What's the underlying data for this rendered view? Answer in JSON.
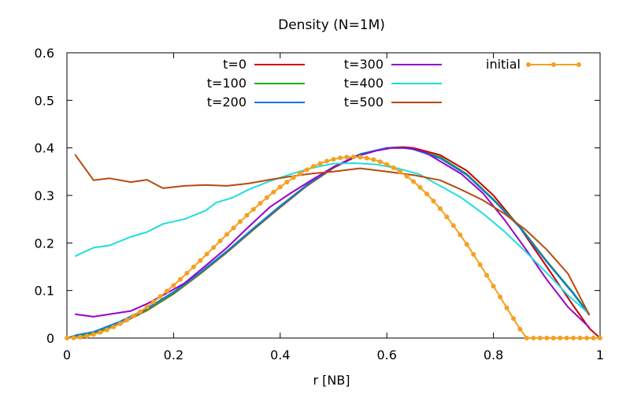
{
  "chart_data": {
    "type": "line",
    "title": "Density (N=1M)",
    "xlabel": "r [NB]",
    "ylabel": "",
    "xlim": [
      0,
      1
    ],
    "ylim": [
      0,
      0.6
    ],
    "xticks": [
      "0",
      "0.2",
      "0.4",
      "0.6",
      "0.8",
      "1"
    ],
    "yticks": [
      "0",
      "0.1",
      "0.2",
      "0.3",
      "0.4",
      "0.5",
      "0.6"
    ],
    "legend_position": "top",
    "series": [
      {
        "name": "t=0",
        "color": "#cc0000",
        "marker": false,
        "x": [
          0.0,
          0.02,
          0.05,
          0.1,
          0.15,
          0.2,
          0.25,
          0.3,
          0.35,
          0.4,
          0.45,
          0.5,
          0.55,
          0.6,
          0.63,
          0.65,
          0.7,
          0.75,
          0.8,
          0.85,
          0.9,
          0.95,
          0.98,
          1.0
        ],
        "y": [
          0.0,
          0.003,
          0.009,
          0.03,
          0.058,
          0.093,
          0.135,
          0.18,
          0.228,
          0.275,
          0.32,
          0.358,
          0.386,
          0.4,
          0.402,
          0.4,
          0.385,
          0.352,
          0.3,
          0.232,
          0.15,
          0.068,
          0.02,
          0.0
        ]
      },
      {
        "name": "t=100",
        "color": "#22aa22",
        "marker": false,
        "x": [
          0.0,
          0.02,
          0.05,
          0.1,
          0.15,
          0.2,
          0.25,
          0.3,
          0.35,
          0.4,
          0.45,
          0.5,
          0.55,
          0.6,
          0.63,
          0.65,
          0.7,
          0.75,
          0.8,
          0.85,
          0.9,
          0.95,
          0.98
        ],
        "y": [
          0.0,
          0.004,
          0.01,
          0.031,
          0.059,
          0.094,
          0.136,
          0.181,
          0.229,
          0.276,
          0.321,
          0.359,
          0.387,
          0.4,
          0.401,
          0.398,
          0.381,
          0.345,
          0.292,
          0.234,
          0.162,
          0.095,
          0.05
        ]
      },
      {
        "name": "t=200",
        "color": "#1177dd",
        "marker": false,
        "x": [
          0.0,
          0.02,
          0.05,
          0.1,
          0.15,
          0.2,
          0.25,
          0.3,
          0.35,
          0.4,
          0.45,
          0.5,
          0.55,
          0.6,
          0.63,
          0.65,
          0.7,
          0.75,
          0.8,
          0.85,
          0.9,
          0.95,
          0.98
        ],
        "y": [
          0.0,
          0.007,
          0.013,
          0.035,
          0.062,
          0.097,
          0.138,
          0.183,
          0.231,
          0.278,
          0.322,
          0.36,
          0.387,
          0.4,
          0.4,
          0.397,
          0.378,
          0.343,
          0.29,
          0.232,
          0.16,
          0.093,
          0.048
        ]
      },
      {
        "name": "t=300",
        "color": "#9900cc",
        "marker": false,
        "x": [
          0.015,
          0.05,
          0.08,
          0.12,
          0.15,
          0.18,
          0.22,
          0.26,
          0.3,
          0.34,
          0.38,
          0.42,
          0.46,
          0.5,
          0.54,
          0.58,
          0.61,
          0.64,
          0.67,
          0.7,
          0.74,
          0.78,
          0.82,
          0.86,
          0.9,
          0.94,
          0.98
        ],
        "y": [
          0.05,
          0.045,
          0.05,
          0.057,
          0.072,
          0.09,
          0.115,
          0.152,
          0.19,
          0.233,
          0.275,
          0.305,
          0.333,
          0.36,
          0.381,
          0.394,
          0.4,
          0.4,
          0.392,
          0.372,
          0.345,
          0.305,
          0.25,
          0.188,
          0.123,
          0.065,
          0.022
        ]
      },
      {
        "name": "t=400",
        "color": "#22dddd",
        "marker": false,
        "x": [
          0.015,
          0.05,
          0.08,
          0.12,
          0.15,
          0.18,
          0.22,
          0.26,
          0.28,
          0.31,
          0.34,
          0.38,
          0.42,
          0.46,
          0.5,
          0.54,
          0.58,
          0.62,
          0.66,
          0.7,
          0.74,
          0.78,
          0.82,
          0.86,
          0.9,
          0.94,
          0.98
        ],
        "y": [
          0.172,
          0.19,
          0.195,
          0.213,
          0.223,
          0.24,
          0.25,
          0.268,
          0.285,
          0.295,
          0.312,
          0.33,
          0.345,
          0.358,
          0.367,
          0.368,
          0.365,
          0.357,
          0.345,
          0.32,
          0.295,
          0.262,
          0.225,
          0.182,
          0.137,
          0.09,
          0.05
        ]
      },
      {
        "name": "t=500",
        "color": "#b84a10",
        "marker": false,
        "x": [
          0.015,
          0.05,
          0.08,
          0.12,
          0.15,
          0.18,
          0.22,
          0.26,
          0.3,
          0.34,
          0.38,
          0.42,
          0.46,
          0.5,
          0.55,
          0.6,
          0.65,
          0.7,
          0.74,
          0.78,
          0.82,
          0.86,
          0.9,
          0.94,
          0.98
        ],
        "y": [
          0.386,
          0.332,
          0.336,
          0.328,
          0.333,
          0.315,
          0.32,
          0.322,
          0.32,
          0.325,
          0.333,
          0.34,
          0.346,
          0.35,
          0.357,
          0.35,
          0.343,
          0.332,
          0.312,
          0.29,
          0.262,
          0.228,
          0.186,
          0.135,
          0.048
        ]
      },
      {
        "name": "initial",
        "color": "#f5a020",
        "marker": true,
        "x": [
          0.0,
          0.0125,
          0.025,
          0.0375,
          0.05,
          0.0625,
          0.075,
          0.0875,
          0.1,
          0.1125,
          0.125,
          0.1375,
          0.15,
          0.1625,
          0.175,
          0.1875,
          0.2,
          0.2125,
          0.225,
          0.2375,
          0.25,
          0.2625,
          0.275,
          0.2875,
          0.3,
          0.3125,
          0.325,
          0.3375,
          0.35,
          0.3625,
          0.375,
          0.3875,
          0.4,
          0.4125,
          0.425,
          0.4375,
          0.45,
          0.4625,
          0.475,
          0.4875,
          0.5,
          0.5125,
          0.525,
          0.5375,
          0.55,
          0.5625,
          0.575,
          0.5875,
          0.6,
          0.6125,
          0.625,
          0.6375,
          0.65,
          0.6625,
          0.675,
          0.6875,
          0.7,
          0.7125,
          0.725,
          0.7375,
          0.75,
          0.7625,
          0.775,
          0.7875,
          0.8,
          0.8125,
          0.825,
          0.8375,
          0.85,
          0.8625,
          0.875,
          0.8875,
          0.9,
          0.9125,
          0.925,
          0.9375,
          0.95,
          0.9625,
          0.975,
          0.9875,
          1.0
        ],
        "y": [
          0.0,
          0.0005,
          0.0019,
          0.0043,
          0.0077,
          0.012,
          0.0172,
          0.0233,
          0.0302,
          0.0379,
          0.0464,
          0.0556,
          0.0655,
          0.076,
          0.0871,
          0.0988,
          0.1109,
          0.1235,
          0.1364,
          0.1496,
          0.1631,
          0.1767,
          0.1904,
          0.2042,
          0.2179,
          0.2315,
          0.2449,
          0.2581,
          0.2709,
          0.2834,
          0.2954,
          0.3069,
          0.3178,
          0.328,
          0.3375,
          0.3463,
          0.3541,
          0.3611,
          0.3671,
          0.3721,
          0.3761,
          0.3789,
          0.3806,
          0.3811,
          0.3804,
          0.3785,
          0.3754,
          0.371,
          0.3652,
          0.3582,
          0.3498,
          0.3401,
          0.3291,
          0.3168,
          0.3032,
          0.2883,
          0.2722,
          0.2549,
          0.2366,
          0.2172,
          0.197,
          0.1759,
          0.1541,
          0.1319,
          0.1092,
          0.0863,
          0.0635,
          0.0409,
          0.0188,
          0.0,
          0.0,
          0.0,
          0.0,
          0.0,
          0.0,
          0.0,
          0.0,
          0.0,
          0.0,
          0.0,
          0.0
        ]
      }
    ]
  }
}
